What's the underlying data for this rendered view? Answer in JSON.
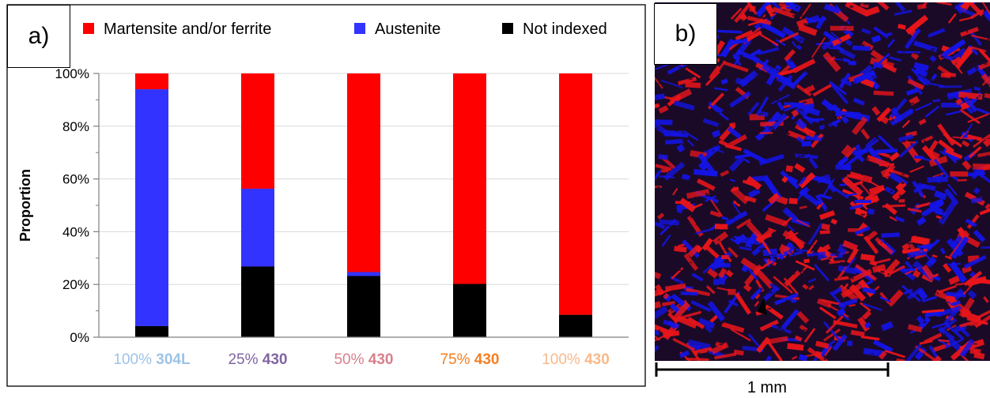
{
  "panel_a": {
    "label": "a)"
  },
  "panel_b": {
    "label": "b)",
    "scale_label": "1 mm"
  },
  "colors": {
    "martensite": "#ff0000",
    "austenite": "#3333ff",
    "not_indexed": "#000000",
    "micro_red": "#e8151a",
    "micro_blue": "#1414e6",
    "micro_dark": "#1a0a28"
  },
  "chart_data": {
    "type": "bar",
    "stacked": true,
    "ylabel": "Proportion",
    "ylim": [
      0,
      100
    ],
    "yticks": [
      "0%",
      "20%",
      "40%",
      "60%",
      "80%",
      "100%"
    ],
    "ytick_values": [
      0,
      20,
      40,
      60,
      80,
      100
    ],
    "grid": true,
    "legend_position": "top",
    "categories": [
      {
        "pct": "100%",
        "name": "304L",
        "color": "#9dc3e6"
      },
      {
        "pct": "25%",
        "name": "430",
        "color": "#8064a2"
      },
      {
        "pct": "50%",
        "name": "430",
        "color": "#d8808c"
      },
      {
        "pct": "75%",
        "name": "430",
        "color": "#f57e20"
      },
      {
        "pct": "100%",
        "name": "430",
        "color": "#f8b98a"
      }
    ],
    "series": [
      {
        "name": "Not indexed",
        "color": "#000000",
        "values": [
          4.2,
          26.8,
          23.2,
          20.2,
          8.5
        ]
      },
      {
        "name": "Austenite",
        "color": "#3333ff",
        "values": [
          89.8,
          29.5,
          1.5,
          0,
          0
        ]
      },
      {
        "name": "Martensite and/or ferrite",
        "color": "#ff0000",
        "values": [
          6.0,
          43.7,
          75.3,
          79.8,
          91.5
        ]
      }
    ],
    "legend_order": [
      "Martensite and/or ferrite",
      "Austenite",
      "Not indexed"
    ]
  }
}
